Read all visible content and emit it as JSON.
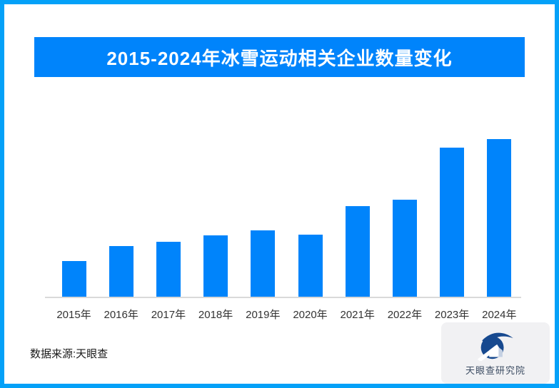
{
  "page": {
    "border_color": "#04a1f8",
    "background_color": "#ffffff"
  },
  "title_banner": {
    "text": "2015-2024年冰雪运动相关企业数量变化",
    "bg_color": "#0084fb",
    "text_color": "#ffffff"
  },
  "chart_data": {
    "type": "bar",
    "title": "2015-2024年冰雪运动相关企业数量变化",
    "categories": [
      "2015年",
      "2016年",
      "2017年",
      "2018年",
      "2019年",
      "2020年",
      "2021年",
      "2022年",
      "2023年",
      "2024年"
    ],
    "values": [
      22.4,
      32.2,
      34.9,
      39.0,
      42.3,
      39.4,
      57.4,
      61.6,
      94.6,
      100
    ],
    "value_scale": "relative units, 2024 = 100 (no numeric y-axis or data labels shown in source image)",
    "xlabel": "",
    "ylabel": "",
    "ylim": [
      0,
      105
    ],
    "grid": false,
    "legend": false,
    "bar_color": "#0084fb",
    "axis_line_color": "#d9d9d9",
    "tick_label_color": "#333333"
  },
  "footer": {
    "source_label": "数据来源:天眼查"
  },
  "logo": {
    "icon": "tianyancha-eye-icon",
    "text": "天眼查研究院",
    "card_bg": "#f1f1f3",
    "icon_color": "#17498f",
    "text_color": "#3d4d63"
  }
}
